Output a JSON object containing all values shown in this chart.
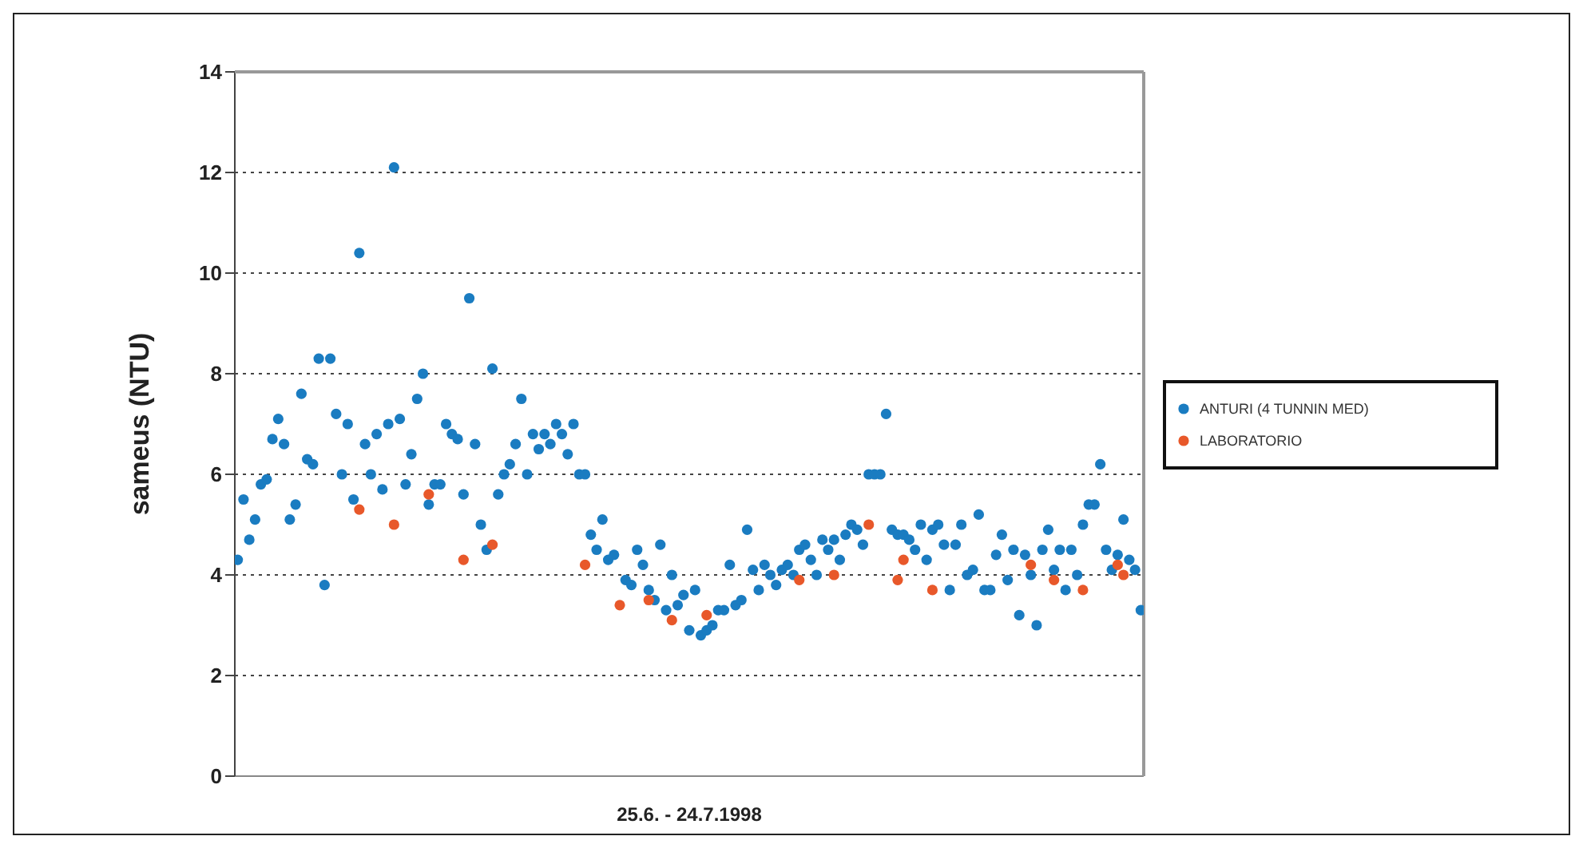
{
  "chart_data": {
    "type": "scatter",
    "xlabel": "25.6. - 24.7.1998",
    "ylabel": "sameus (NTU)",
    "categories": [
      null,
      null,
      null,
      null,
      null,
      null,
      null,
      null,
      null,
      null,
      null,
      null,
      null,
      null,
      null,
      null,
      null,
      null,
      null,
      null,
      null,
      null,
      null,
      null,
      null,
      null,
      null,
      null,
      null,
      null,
      null,
      null,
      null,
      null,
      null,
      null,
      null,
      null,
      null,
      null,
      null,
      null,
      null,
      null,
      null,
      null,
      null,
      null,
      null,
      null,
      null,
      null,
      null,
      null,
      null,
      null,
      null,
      null,
      null,
      null,
      null,
      null,
      null,
      null,
      null,
      null,
      null,
      null,
      null,
      null,
      null,
      null,
      null,
      null,
      null,
      null,
      null,
      null,
      null,
      null,
      null,
      null,
      null,
      null,
      null,
      null,
      null,
      null,
      null,
      null,
      null,
      null,
      null,
      null,
      null,
      null,
      null,
      null,
      null,
      null,
      null,
      null,
      null,
      null,
      null,
      null,
      null,
      null,
      null,
      null,
      null,
      null,
      null,
      null,
      null,
      null,
      null,
      null,
      null,
      null,
      null,
      null,
      null,
      null,
      null,
      null,
      null,
      null,
      null,
      null,
      null,
      null,
      null,
      null,
      null,
      null,
      null,
      null,
      null,
      null,
      null,
      null,
      null,
      null,
      null,
      null,
      null,
      null,
      null,
      null,
      null,
      null,
      null,
      null,
      null,
      null,
      null
    ],
    "series": [
      {
        "name": "ANTURI (4 TUNNIN MED)",
        "color": "#1a7cc1",
        "values": [
          4.3,
          5.5,
          4.7,
          5.1,
          5.8,
          5.9,
          6.7,
          7.1,
          6.6,
          5.1,
          5.4,
          7.6,
          6.3,
          6.2,
          8.3,
          3.8,
          8.3,
          7.2,
          6.0,
          7.0,
          5.5,
          10.4,
          6.6,
          6.0,
          6.8,
          5.7,
          7.0,
          12.1,
          7.1,
          5.8,
          6.4,
          7.5,
          8.0,
          5.4,
          5.8,
          5.8,
          7.0,
          6.8,
          6.7,
          5.6,
          9.5,
          6.6,
          5.0,
          4.5,
          8.1,
          5.6,
          6.0,
          6.2,
          6.6,
          7.5,
          6.0,
          6.8,
          6.5,
          6.8,
          6.6,
          7.0,
          6.8,
          6.4,
          7.0,
          6.0,
          6.0,
          4.8,
          4.5,
          5.1,
          4.3,
          4.4,
          null,
          3.9,
          3.8,
          4.5,
          4.2,
          3.7,
          3.5,
          4.6,
          3.3,
          4.0,
          3.4,
          3.6,
          2.9,
          3.7,
          2.8,
          2.9,
          3.0,
          3.3,
          3.3,
          4.2,
          3.4,
          3.5,
          4.9,
          4.1,
          3.7,
          4.2,
          4.0,
          3.8,
          4.1,
          4.2,
          4.0,
          4.5,
          4.6,
          4.3,
          4.0,
          4.7,
          4.5,
          4.7,
          4.3,
          4.8,
          5.0,
          4.9,
          4.6,
          6.0,
          6.0,
          6.0,
          7.2,
          4.9,
          4.8,
          4.8,
          4.7,
          4.5,
          5.0,
          4.3,
          4.9,
          5.0,
          4.6,
          3.7,
          4.6,
          5.0,
          4.0,
          4.1,
          5.2,
          3.7,
          3.7,
          4.4,
          4.8,
          3.9,
          4.5,
          3.2,
          4.4,
          4.0,
          3.0,
          4.5,
          4.9,
          4.1,
          4.5,
          3.7,
          4.5,
          4.0,
          5.0,
          5.4,
          5.4,
          6.2,
          4.5,
          4.1,
          4.4,
          5.1,
          4.3,
          4.1,
          3.3
        ]
      },
      {
        "name": "LABORATORIO",
        "color": "#e8582a",
        "values": [
          null,
          null,
          null,
          null,
          null,
          null,
          null,
          null,
          null,
          null,
          null,
          null,
          null,
          null,
          null,
          null,
          null,
          null,
          null,
          null,
          null,
          5.3,
          null,
          null,
          null,
          null,
          null,
          5.0,
          null,
          null,
          null,
          null,
          null,
          5.6,
          null,
          null,
          null,
          null,
          null,
          4.3,
          null,
          null,
          null,
          null,
          4.6,
          null,
          null,
          null,
          null,
          null,
          null,
          null,
          null,
          null,
          null,
          null,
          null,
          null,
          null,
          null,
          4.2,
          null,
          null,
          null,
          null,
          null,
          3.4,
          null,
          null,
          null,
          null,
          3.5,
          null,
          null,
          null,
          3.1,
          null,
          null,
          null,
          null,
          null,
          3.2,
          null,
          null,
          null,
          null,
          null,
          null,
          null,
          null,
          null,
          null,
          null,
          null,
          null,
          null,
          null,
          3.9,
          null,
          null,
          null,
          null,
          null,
          4.0,
          null,
          null,
          null,
          null,
          null,
          5.0,
          null,
          null,
          null,
          null,
          3.9,
          4.3,
          null,
          null,
          null,
          null,
          3.7,
          null,
          null,
          null,
          null,
          null,
          null,
          null,
          null,
          null,
          null,
          null,
          null,
          null,
          null,
          null,
          null,
          4.2,
          null,
          null,
          null,
          3.9,
          null,
          null,
          null,
          null,
          3.7,
          null,
          null,
          null,
          null,
          null,
          4.2,
          4.0,
          null,
          null,
          null
        ]
      }
    ],
    "ylim": [
      0,
      14
    ],
    "yticks": [
      0,
      2,
      4,
      6,
      8,
      10,
      12,
      14
    ],
    "grid": "y",
    "legend": "right",
    "marker": "circle"
  }
}
